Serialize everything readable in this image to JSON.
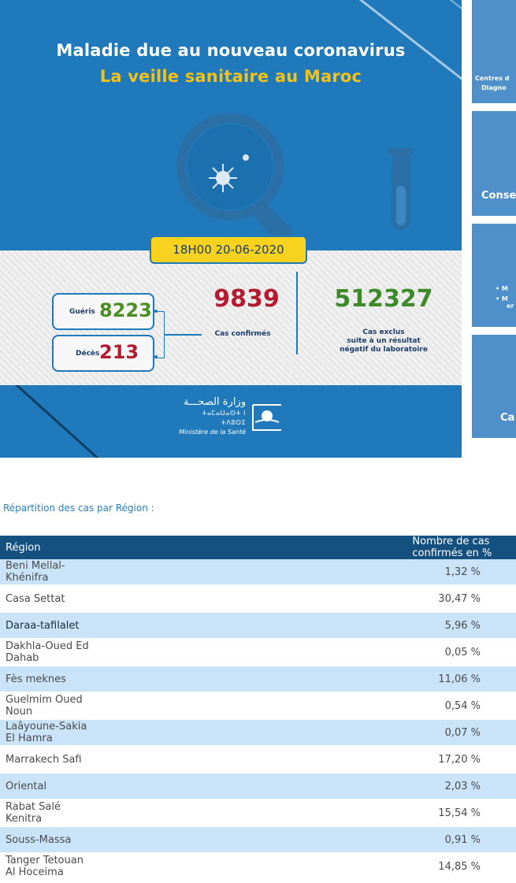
{
  "banner": {
    "title_line1": "Maladie due au nouveau coronavirus",
    "title_line2": "La veille sanitaire au Maroc",
    "date_time": "18H00  20-06-2020",
    "gueris_label": "Guéris",
    "gueris_value": "8223",
    "deces_label": "Décès",
    "deces_value": "213",
    "confirmed_value": "9839",
    "confirmed_label": "Cas confirmés",
    "excluded_value": "512327",
    "excluded_label_1": "Cas exclus",
    "excluded_label_2": "suite à un résultat",
    "excluded_label_3": "négatif du laboratoire",
    "ministry_arabic": "وزارة الصحـــة",
    "ministry_tifinagh": "ⵜⴰⵎⴰⵡⴰⵙⵜ ⵏ ⵜⴷⵓⵙⵉ",
    "ministry_french": "Ministère de la Santé"
  },
  "side_cards": {
    "card1_line1": "Centres d",
    "card1_line2": "Diagno",
    "card2_line1": "Conse",
    "card3_line1": "• M",
    "card3_line2": "• M",
    "card3_line3": "er",
    "card4_line1": "Ca"
  },
  "region_heading": "Répartition des cas par Région :",
  "table": {
    "headers": [
      "Région",
      "Nombre de cas confirmés en %"
    ],
    "rows": [
      {
        "region": "Beni Mellal-Khénifra",
        "value": "1,32 %"
      },
      {
        "region": "Casa Settat",
        "value": "30,47 %"
      },
      {
        "region": "Daraa-tafilalet",
        "value": "5,96 %"
      },
      {
        "region": "Dakhla-Oued Ed Dahab",
        "value": "0,05 %"
      },
      {
        "region": "Fès meknes",
        "value": "11,06 %"
      },
      {
        "region": "Guelmim Oued Noun",
        "value": "0,54 %"
      },
      {
        "region": "Laâyoune-Sakia El Hamra",
        "value": "0,07 %"
      },
      {
        "region": "Marrakech Safi",
        "value": "17,20 %"
      },
      {
        "region": "Oriental",
        "value": "2,03 %"
      },
      {
        "region": "Rabat Salé Kenitra",
        "value": "15,54 %"
      },
      {
        "region": "Souss-Massa",
        "value": "0,91 %"
      },
      {
        "region": "Tanger Tetouan Al Hoceima",
        "value": "14,85 %"
      }
    ]
  },
  "colors": {
    "banner_blue": "#1f79bb",
    "title_yellow": "#f2c21b",
    "green": "#4a8f23",
    "red": "#b31b30",
    "table_header": "#145181",
    "row_alt": "#c9e3f9"
  },
  "icons": [
    "magnifier-icon",
    "virus-icon",
    "test-tube-icon",
    "ministry-logo-icon"
  ]
}
